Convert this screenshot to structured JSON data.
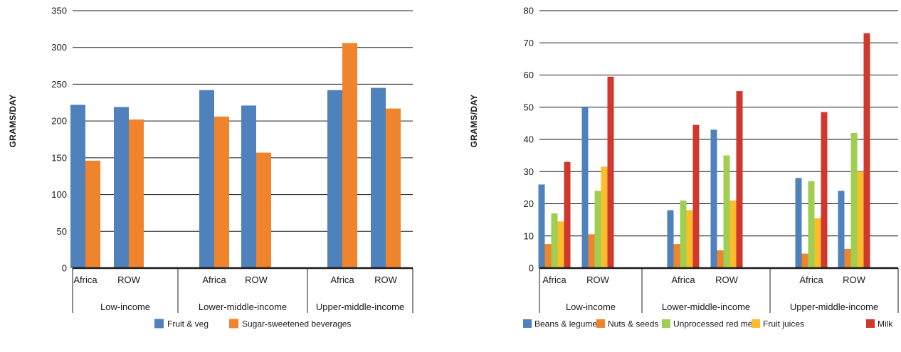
{
  "chart_data": [
    {
      "type": "bar",
      "ylabel": "GRAMS/DAY",
      "ylim": [
        0,
        350
      ],
      "yticks": [
        0,
        50,
        100,
        150,
        200,
        250,
        300,
        350
      ],
      "groups": [
        "Low-income",
        "Lower-middle-income",
        "Upper-middle-income"
      ],
      "subcategories": [
        "Africa",
        "ROW"
      ],
      "legend_position": "bottom",
      "series": [
        {
          "name": "Fruit & veg",
          "color": "#4f81bd",
          "values": [
            [
              222,
              219
            ],
            [
              242,
              221
            ],
            [
              242,
              245
            ]
          ]
        },
        {
          "name": "Sugar-sweetened beverages",
          "color": "#f0842c",
          "values": [
            [
              146,
              202
            ],
            [
              206,
              157
            ],
            [
              306,
              217
            ]
          ]
        }
      ]
    },
    {
      "type": "bar",
      "ylabel": "GRAMS/DAY",
      "ylim": [
        0,
        80
      ],
      "yticks": [
        0,
        10,
        20,
        30,
        40,
        50,
        60,
        70,
        80
      ],
      "groups": [
        "Low-income",
        "Lower-middle-income",
        "Upper-middle-income"
      ],
      "subcategories": [
        "Africa",
        "ROW"
      ],
      "legend_position": "bottom",
      "series": [
        {
          "name": "Beans & legumes",
          "color": "#4f81bd",
          "values": [
            [
              26,
              50
            ],
            [
              18,
              43
            ],
            [
              28,
              24
            ]
          ]
        },
        {
          "name": "Nuts & seeds",
          "color": "#f0842c",
          "values": [
            [
              7.5,
              10.5
            ],
            [
              7.5,
              5.5
            ],
            [
              4.5,
              6
            ]
          ]
        },
        {
          "name": "Unprocessed red meat",
          "color": "#9fcf50",
          "values": [
            [
              17,
              24
            ],
            [
              21,
              35
            ],
            [
              27,
              42
            ]
          ]
        },
        {
          "name": "Fruit juices",
          "color": "#fbbd2c",
          "values": [
            [
              14.5,
              31.5
            ],
            [
              18,
              21
            ],
            [
              15.5,
              30
            ]
          ]
        },
        {
          "name": "Milk",
          "color": "#d0382e",
          "values": [
            [
              33,
              59.5
            ],
            [
              44.5,
              55
            ],
            [
              48.5,
              73
            ]
          ]
        }
      ]
    }
  ]
}
